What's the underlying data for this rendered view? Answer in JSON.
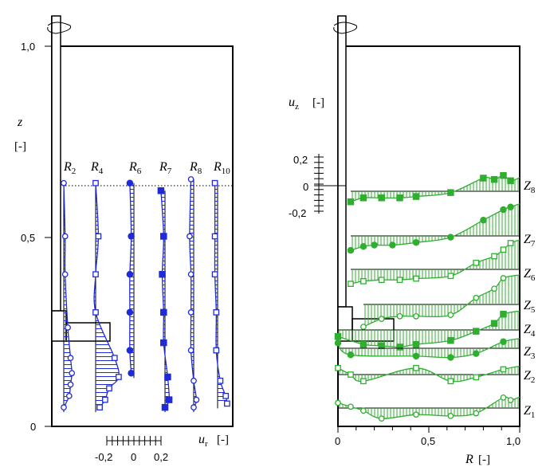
{
  "colors": {
    "blue": "#1f2bd6",
    "green": "#2fae2f",
    "frame": "#000000"
  },
  "left_panel": {
    "z_axis": {
      "symbol": "z",
      "unit": "[-]",
      "ticks": [
        "0",
        "0,5",
        "1,0"
      ]
    },
    "ur_axis": {
      "symbol": "u",
      "subscript": "r",
      "unit": "[-]",
      "ticks": [
        "-0,2",
        "0",
        "0,2"
      ]
    },
    "profile_labels": [
      {
        "letter": "R",
        "sub": "2"
      },
      {
        "letter": "R",
        "sub": "4"
      },
      {
        "letter": "R",
        "sub": "6"
      },
      {
        "letter": "R",
        "sub": "7"
      },
      {
        "letter": "R",
        "sub": "8"
      },
      {
        "letter": "R",
        "sub": "10"
      }
    ]
  },
  "right_panel": {
    "uz_axis": {
      "symbol": "u",
      "subscript": "z",
      "unit": "[-]",
      "ticks": [
        "0,2",
        "0",
        "-0,2"
      ]
    },
    "r_axis": {
      "symbol": "R",
      "unit": "[-]",
      "ticks": [
        "0",
        "0,5",
        "1,0"
      ]
    },
    "profile_labels": [
      {
        "letter": "Z",
        "sub": "8"
      },
      {
        "letter": "Z",
        "sub": "7"
      },
      {
        "letter": "Z",
        "sub": "6"
      },
      {
        "letter": "Z",
        "sub": "5"
      },
      {
        "letter": "Z",
        "sub": "4"
      },
      {
        "letter": "Z",
        "sub": "3"
      },
      {
        "letter": "Z",
        "sub": "2"
      },
      {
        "letter": "Z",
        "sub": "1"
      }
    ]
  },
  "chart_data": [
    {
      "type": "line",
      "panel": "left",
      "xlabel": "u_r [-]",
      "ylabel": "z [-]",
      "ylim": [
        0,
        1.0
      ],
      "x_ticks": [
        -0.2,
        0,
        0.2
      ],
      "y_ticks": [
        0,
        0.5,
        1.0
      ],
      "marker_color": "#1f2bd6",
      "series": [
        {
          "name": "R2",
          "marker": "open-circle",
          "z": [
            0.64,
            0.5,
            0.4,
            0.26,
            0.18,
            0.14,
            0.11,
            0.08,
            0.05
          ],
          "u": [
            0.0,
            0.01,
            0.01,
            0.03,
            0.05,
            0.06,
            0.05,
            0.04,
            0.0
          ]
        },
        {
          "name": "R4",
          "marker": "open-square",
          "z": [
            0.64,
            0.5,
            0.4,
            0.3,
            0.18,
            0.13,
            0.1,
            0.07,
            0.05
          ],
          "u": [
            0.0,
            0.02,
            0.0,
            0.0,
            0.14,
            0.17,
            0.1,
            0.07,
            0.03
          ]
        },
        {
          "name": "R6",
          "marker": "filled-circle",
          "z": [
            0.64,
            0.5,
            0.4,
            0.3,
            0.2,
            0.14
          ],
          "u": [
            -0.03,
            -0.02,
            -0.03,
            -0.03,
            -0.03,
            -0.02
          ]
        },
        {
          "name": "R7",
          "marker": "filled-square",
          "z": [
            0.62,
            0.5,
            0.4,
            0.3,
            0.22,
            0.13,
            0.07,
            0.05
          ],
          "u": [
            -0.03,
            -0.01,
            -0.02,
            -0.01,
            -0.01,
            0.02,
            0.03,
            0.0
          ]
        },
        {
          "name": "R8",
          "marker": "open-circle",
          "z": [
            0.65,
            0.5,
            0.4,
            0.3,
            0.2,
            0.12,
            0.07,
            0.05
          ],
          "u": [
            -0.02,
            -0.03,
            -0.02,
            -0.02,
            -0.02,
            0.0,
            0.02,
            0.0
          ]
        },
        {
          "name": "R10",
          "marker": "open-square",
          "z": [
            0.64,
            0.5,
            0.4,
            0.3,
            0.2,
            0.12,
            0.08,
            0.06
          ],
          "u": [
            -0.02,
            -0.02,
            -0.02,
            -0.01,
            -0.01,
            0.02,
            0.06,
            0.07
          ]
        }
      ]
    },
    {
      "type": "line",
      "panel": "right",
      "xlabel": "R [-]",
      "ylabel": "u_z [-]",
      "xlim": [
        0,
        1.0
      ],
      "x_ticks": [
        0,
        0.5,
        1.0
      ],
      "y_ticks": [
        0.2,
        0,
        -0.2
      ],
      "marker_color": "#2fae2f",
      "series": [
        {
          "name": "Z8",
          "marker": "filled-square",
          "R": [
            0.07,
            0.14,
            0.24,
            0.34,
            0.43,
            0.62,
            0.8,
            0.86,
            0.91,
            0.95
          ],
          "uz": [
            -0.08,
            -0.05,
            -0.05,
            -0.05,
            -0.04,
            -0.01,
            0.1,
            0.09,
            0.12,
            0.08
          ]
        },
        {
          "name": "Z7",
          "marker": "filled-circle",
          "R": [
            0.07,
            0.14,
            0.2,
            0.3,
            0.43,
            0.62,
            0.8,
            0.91,
            0.95
          ],
          "uz": [
            -0.11,
            -0.08,
            -0.07,
            -0.07,
            -0.05,
            -0.01,
            0.12,
            0.2,
            0.22
          ]
        },
        {
          "name": "Z6",
          "marker": "open-square",
          "R": [
            0.07,
            0.14,
            0.24,
            0.34,
            0.43,
            0.62,
            0.76,
            0.86,
            0.91,
            0.95
          ],
          "uz": [
            -0.11,
            -0.09,
            -0.08,
            -0.08,
            -0.07,
            -0.05,
            0.05,
            0.1,
            0.15,
            0.2
          ]
        },
        {
          "name": "Z5",
          "marker": "open-circle",
          "R": [
            0.14,
            0.24,
            0.34,
            0.43,
            0.62,
            0.76,
            0.86,
            0.91
          ],
          "uz": [
            -0.17,
            -0.11,
            -0.09,
            -0.09,
            -0.08,
            0.05,
            0.12,
            0.2
          ]
        },
        {
          "name": "Z4",
          "marker": "filled-square",
          "R": [
            0.0,
            0.14,
            0.24,
            0.34,
            0.43,
            0.62,
            0.76,
            0.86,
            0.91
          ],
          "uz": [
            -0.05,
            -0.11,
            -0.12,
            -0.13,
            -0.11,
            -0.08,
            -0.01,
            0.05,
            0.12
          ]
        },
        {
          "name": "Z3",
          "marker": "filled-circle",
          "R": [
            0.0,
            0.07,
            0.43,
            0.62,
            0.76,
            0.91
          ],
          "uz": [
            0.04,
            -0.05,
            -0.06,
            -0.07,
            -0.04,
            0.05
          ]
        },
        {
          "name": "Z2",
          "marker": "open-square",
          "R": [
            0.0,
            0.07,
            0.14,
            0.43,
            0.62,
            0.76,
            0.91
          ],
          "uz": [
            0.05,
            0.0,
            -0.05,
            0.05,
            -0.05,
            -0.02,
            0.04
          ]
        },
        {
          "name": "Z1",
          "marker": "open-circle",
          "R": [
            0.0,
            0.07,
            0.14,
            0.24,
            0.43,
            0.62,
            0.76,
            0.91,
            0.95
          ],
          "uz": [
            0.04,
            0.01,
            -0.02,
            -0.08,
            -0.05,
            -0.06,
            -0.04,
            0.08,
            0.06
          ]
        }
      ]
    }
  ]
}
